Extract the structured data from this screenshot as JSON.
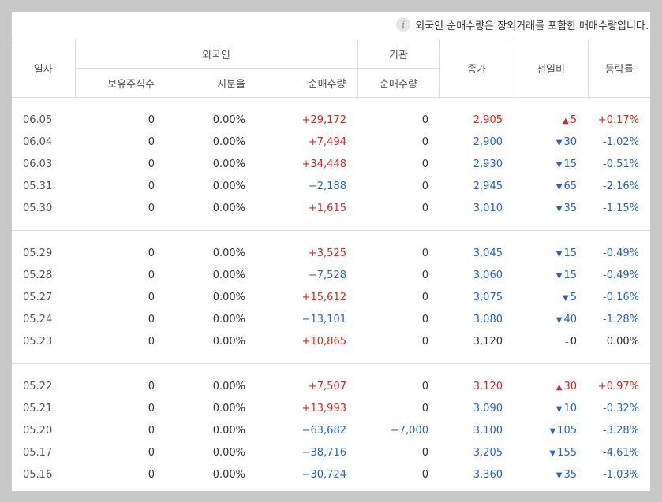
{
  "notice": {
    "icon": "info-icon",
    "text": "외국인 순매수량은 장외거래를 포함한 매매수량입니다."
  },
  "headers": {
    "date": "일자",
    "foreign": "외국인",
    "institution": "기관",
    "close": "종가",
    "change": "전일비",
    "rate": "등락률",
    "holdings": "보유주식수",
    "share_ratio": "지분율",
    "foreign_net": "순매수량",
    "inst_net": "순매수량"
  },
  "colors": {
    "up": "#e2231a",
    "down": "#2563c9",
    "flat": "#333333"
  },
  "groups": [
    [
      {
        "date": "06.05",
        "holdings": "0",
        "ratio": "0.00%",
        "fnet": "+29,172",
        "fdir": "up",
        "inet": "0",
        "idir": "flat",
        "close": "2,905",
        "dir": "up",
        "arrow": "▲",
        "change": "5",
        "rate": "+0.17%"
      },
      {
        "date": "06.04",
        "holdings": "0",
        "ratio": "0.00%",
        "fnet": "+7,494",
        "fdir": "up",
        "inet": "0",
        "idir": "flat",
        "close": "2,900",
        "dir": "down",
        "arrow": "▼",
        "change": "30",
        "rate": "-1.02%"
      },
      {
        "date": "06.03",
        "holdings": "0",
        "ratio": "0.00%",
        "fnet": "+34,448",
        "fdir": "up",
        "inet": "0",
        "idir": "flat",
        "close": "2,930",
        "dir": "down",
        "arrow": "▼",
        "change": "15",
        "rate": "-0.51%"
      },
      {
        "date": "05.31",
        "holdings": "0",
        "ratio": "0.00%",
        "fnet": "−2,188",
        "fdir": "down",
        "inet": "0",
        "idir": "flat",
        "close": "2,945",
        "dir": "down",
        "arrow": "▼",
        "change": "65",
        "rate": "-2.16%"
      },
      {
        "date": "05.30",
        "holdings": "0",
        "ratio": "0.00%",
        "fnet": "+1,615",
        "fdir": "up",
        "inet": "0",
        "idir": "flat",
        "close": "3,010",
        "dir": "down",
        "arrow": "▼",
        "change": "35",
        "rate": "-1.15%"
      }
    ],
    [
      {
        "date": "05.29",
        "holdings": "0",
        "ratio": "0.00%",
        "fnet": "+3,525",
        "fdir": "up",
        "inet": "0",
        "idir": "flat",
        "close": "3,045",
        "dir": "down",
        "arrow": "▼",
        "change": "15",
        "rate": "-0.49%"
      },
      {
        "date": "05.28",
        "holdings": "0",
        "ratio": "0.00%",
        "fnet": "−7,528",
        "fdir": "down",
        "inet": "0",
        "idir": "flat",
        "close": "3,060",
        "dir": "down",
        "arrow": "▼",
        "change": "15",
        "rate": "-0.49%"
      },
      {
        "date": "05.27",
        "holdings": "0",
        "ratio": "0.00%",
        "fnet": "+15,612",
        "fdir": "up",
        "inet": "0",
        "idir": "flat",
        "close": "3,075",
        "dir": "down",
        "arrow": "▼",
        "change": "5",
        "rate": "-0.16%"
      },
      {
        "date": "05.24",
        "holdings": "0",
        "ratio": "0.00%",
        "fnet": "−13,101",
        "fdir": "down",
        "inet": "0",
        "idir": "flat",
        "close": "3,080",
        "dir": "down",
        "arrow": "▼",
        "change": "40",
        "rate": "-1.28%"
      },
      {
        "date": "05.23",
        "holdings": "0",
        "ratio": "0.00%",
        "fnet": "+10,865",
        "fdir": "up",
        "inet": "0",
        "idir": "flat",
        "close": "3,120",
        "dir": "flat",
        "arrow": "–",
        "change": "0",
        "rate": "0.00%"
      }
    ],
    [
      {
        "date": "05.22",
        "holdings": "0",
        "ratio": "0.00%",
        "fnet": "+7,507",
        "fdir": "up",
        "inet": "0",
        "idir": "flat",
        "close": "3,120",
        "dir": "up",
        "arrow": "▲",
        "change": "30",
        "rate": "+0.97%"
      },
      {
        "date": "05.21",
        "holdings": "0",
        "ratio": "0.00%",
        "fnet": "+13,993",
        "fdir": "up",
        "inet": "0",
        "idir": "flat",
        "close": "3,090",
        "dir": "down",
        "arrow": "▼",
        "change": "10",
        "rate": "-0.32%"
      },
      {
        "date": "05.20",
        "holdings": "0",
        "ratio": "0.00%",
        "fnet": "−63,682",
        "fdir": "down",
        "inet": "−7,000",
        "idir": "down",
        "close": "3,100",
        "dir": "down",
        "arrow": "▼",
        "change": "105",
        "rate": "-3.28%"
      },
      {
        "date": "05.17",
        "holdings": "0",
        "ratio": "0.00%",
        "fnet": "−38,716",
        "fdir": "down",
        "inet": "0",
        "idir": "flat",
        "close": "3,205",
        "dir": "down",
        "arrow": "▼",
        "change": "155",
        "rate": "-4.61%"
      },
      {
        "date": "05.16",
        "holdings": "0",
        "ratio": "0.00%",
        "fnet": "−30,724",
        "fdir": "down",
        "inet": "0",
        "idir": "flat",
        "close": "3,360",
        "dir": "down",
        "arrow": "▼",
        "change": "35",
        "rate": "-1.03%"
      }
    ]
  ]
}
